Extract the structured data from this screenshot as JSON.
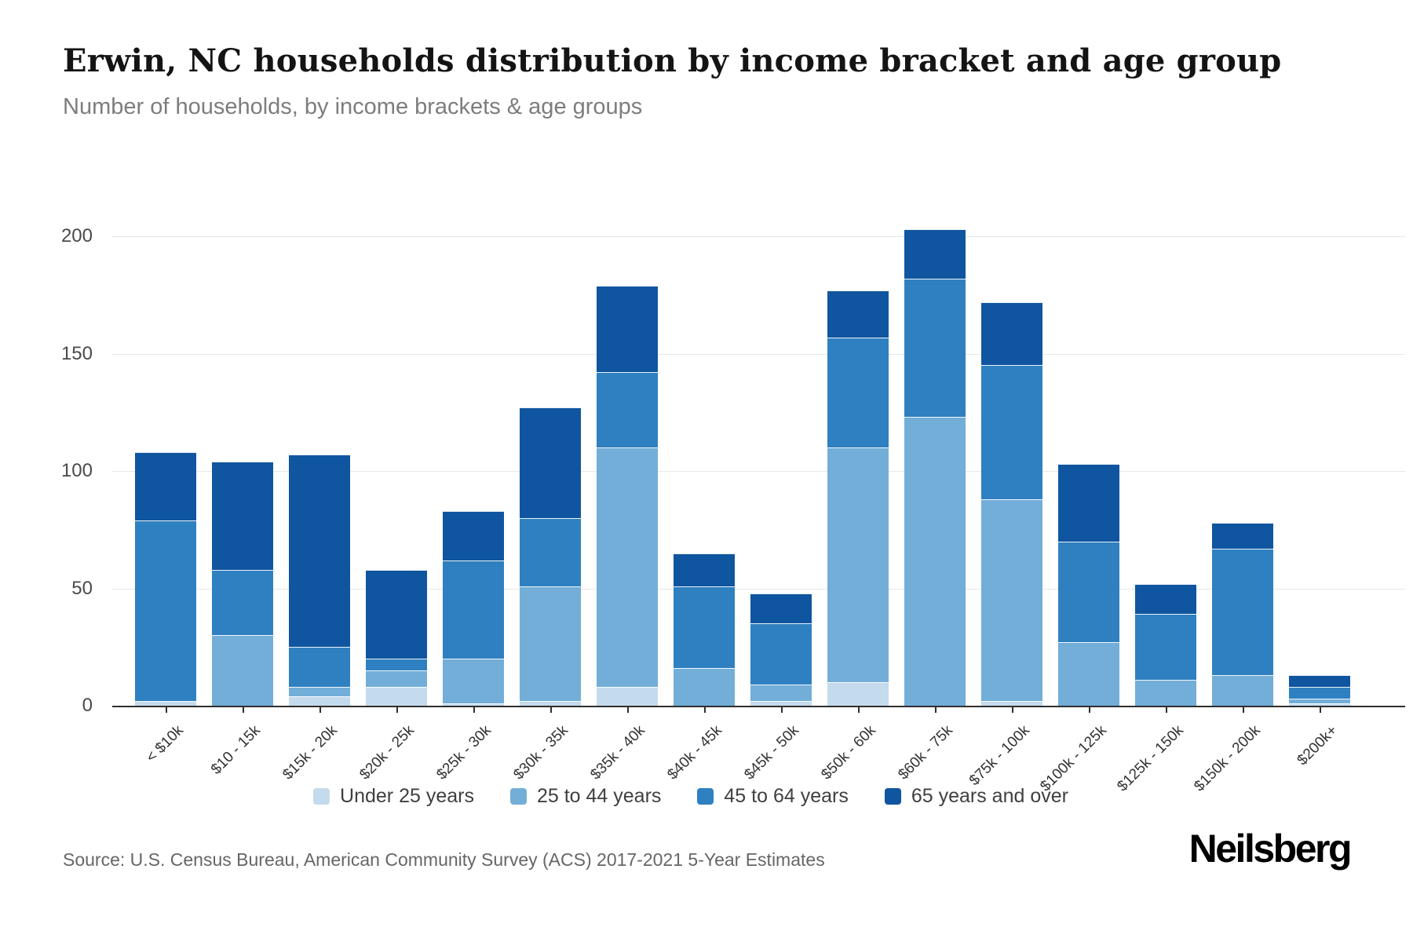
{
  "header": {
    "title": "Erwin, NC households distribution by income bracket and age group",
    "subtitle": "Number of households, by income brackets & age groups"
  },
  "chart_data": {
    "type": "bar",
    "stacked": true,
    "title": "Erwin, NC households distribution by income bracket and age group",
    "categories": [
      "< $10k",
      "$10 - 15k",
      "$15k - 20k",
      "$20k - 25k",
      "$25k - 30k",
      "$30k - 35k",
      "$35k - 40k",
      "$40k - 45k",
      "$45k - 50k",
      "$50k - 60k",
      "$60k - 75k",
      "$75k - 100k",
      "$100k - 125k",
      "$125k - 150k",
      "$150k - 200k",
      "$200k+"
    ],
    "series": [
      {
        "name": "Under 25 years",
        "color": "#c4dbed",
        "values": [
          2,
          0,
          4,
          8,
          1,
          2,
          8,
          0,
          2,
          10,
          0,
          2,
          0,
          0,
          0,
          1
        ]
      },
      {
        "name": "25 to 44 years",
        "color": "#72aed8",
        "values": [
          0,
          30,
          4,
          7,
          19,
          49,
          102,
          16,
          7,
          100,
          123,
          86,
          27,
          11,
          13,
          2
        ]
      },
      {
        "name": "45 to 64 years",
        "color": "#2f80c0",
        "values": [
          77,
          28,
          17,
          5,
          42,
          29,
          32,
          35,
          26,
          47,
          59,
          57,
          43,
          28,
          54,
          5
        ]
      },
      {
        "name": "65 years and over",
        "color": "#10559f",
        "values": [
          29,
          46,
          82,
          38,
          21,
          47,
          37,
          14,
          13,
          20,
          21,
          27,
          33,
          13,
          11,
          5
        ]
      }
    ],
    "totals": [
      108,
      104,
      107,
      58,
      83,
      127,
      179,
      65,
      48,
      177,
      203,
      172,
      103,
      52,
      78,
      13
    ],
    "xlabel": "",
    "ylabel": "",
    "yticks": [
      0,
      50,
      100,
      150,
      200
    ],
    "ylim": [
      0,
      214
    ],
    "grid": true,
    "legend_position": "bottom"
  },
  "source": {
    "text": "Source: U.S. Census Bureau, American Community Survey (ACS) 2017-2021 5-Year Estimates"
  },
  "branding": {
    "logo_text": "Neilsberg"
  }
}
